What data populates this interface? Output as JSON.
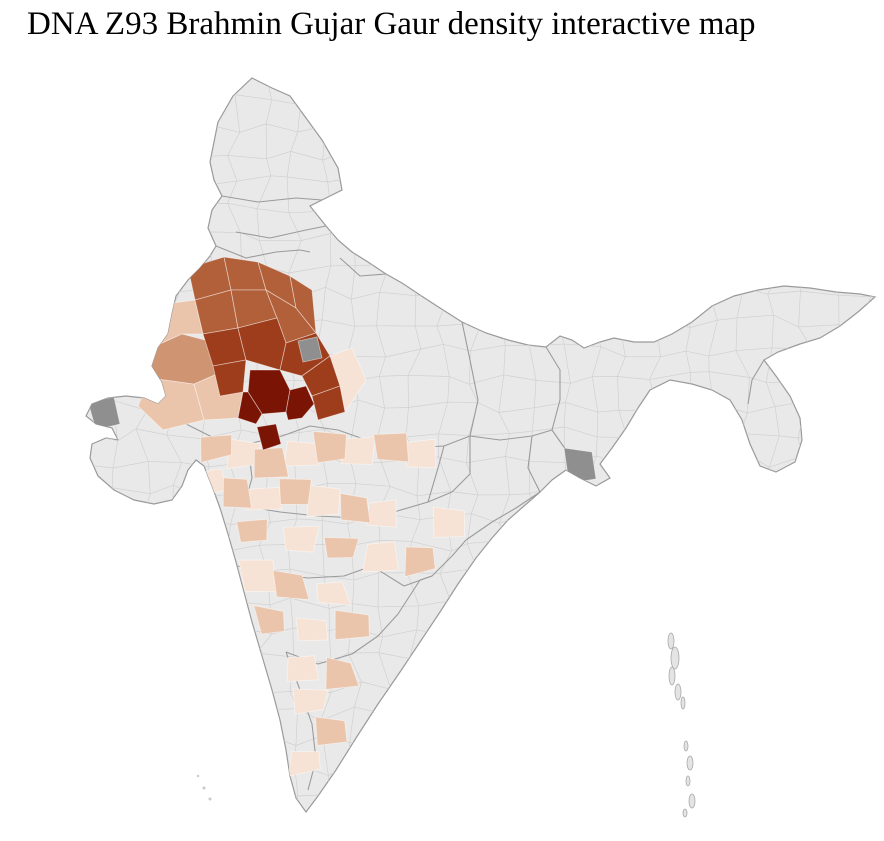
{
  "page": {
    "title": "DNA Z93 Brahmin Gujar Gaur density interactive map",
    "background": "#ffffff"
  },
  "map": {
    "region": "India",
    "kind": "district-choropleth",
    "base_fill": "#e9e9e9",
    "coast_stroke": "#9a9a9a",
    "state_stroke": "#9b9b9b",
    "district_mesh_stroke": "#cfcfcf",
    "density_scale": {
      "very-high": "#7a1404",
      "high": "#9d3d1b",
      "medium": "#b2603a",
      "medium-low": "#cf9472",
      "low": "#eac5ab",
      "very-low": "#f6e3d6",
      "no-data-dark": "#8f8f8f",
      "none": "#e9e9e9"
    },
    "districts": [
      {
        "id": "nw01",
        "level": "medium"
      },
      {
        "id": "nw02",
        "level": "medium"
      },
      {
        "id": "nw03",
        "level": "medium"
      },
      {
        "id": "nw04",
        "level": "medium"
      },
      {
        "id": "nw05",
        "level": "medium"
      },
      {
        "id": "nw06",
        "level": "medium"
      },
      {
        "id": "nw07",
        "level": "medium"
      },
      {
        "id": "nwh1",
        "level": "high"
      },
      {
        "id": "nwh2",
        "level": "high"
      },
      {
        "id": "nwh3",
        "level": "high"
      },
      {
        "id": "nwh4",
        "level": "high"
      },
      {
        "id": "nwh5",
        "level": "high"
      },
      {
        "id": "nwh6",
        "level": "high"
      },
      {
        "id": "nwd1",
        "level": "very-high"
      },
      {
        "id": "nwd2",
        "level": "very-high"
      },
      {
        "id": "nwd3",
        "level": "very-high"
      },
      {
        "id": "nwd4",
        "level": "very-high"
      },
      {
        "id": "nwg1",
        "level": "no-data-dark"
      },
      {
        "id": "gkutch",
        "level": "no-data-dark"
      },
      {
        "id": "geast",
        "level": "no-data-dark"
      },
      {
        "id": "nwml1",
        "level": "medium-low"
      },
      {
        "id": "nwl1",
        "level": "low"
      },
      {
        "id": "nwl2",
        "level": "low"
      },
      {
        "id": "nwl3",
        "level": "low"
      },
      {
        "id": "nwl4",
        "level": "very-low"
      },
      {
        "id": "s01",
        "level": "low"
      },
      {
        "id": "s02",
        "level": "very-low"
      },
      {
        "id": "s03",
        "level": "low"
      },
      {
        "id": "s04",
        "level": "very-low"
      },
      {
        "id": "s05",
        "level": "low"
      },
      {
        "id": "s06",
        "level": "very-low"
      },
      {
        "id": "s07",
        "level": "low"
      },
      {
        "id": "s08",
        "level": "very-low"
      },
      {
        "id": "s09",
        "level": "very-low"
      },
      {
        "id": "s10",
        "level": "low"
      },
      {
        "id": "s11",
        "level": "very-low"
      },
      {
        "id": "s12",
        "level": "low"
      },
      {
        "id": "s13",
        "level": "very-low"
      },
      {
        "id": "s14",
        "level": "low"
      },
      {
        "id": "s15",
        "level": "very-low"
      },
      {
        "id": "s16",
        "level": "low"
      },
      {
        "id": "s17",
        "level": "very-low"
      },
      {
        "id": "s18",
        "level": "low"
      },
      {
        "id": "s19",
        "level": "very-low"
      },
      {
        "id": "s20",
        "level": "very-low"
      },
      {
        "id": "s21",
        "level": "low"
      },
      {
        "id": "s22",
        "level": "very-low"
      },
      {
        "id": "s23",
        "level": "low"
      },
      {
        "id": "s24",
        "level": "very-low"
      },
      {
        "id": "s25",
        "level": "low"
      },
      {
        "id": "s26",
        "level": "very-low"
      },
      {
        "id": "s27",
        "level": "low"
      },
      {
        "id": "s28",
        "level": "very-low"
      },
      {
        "id": "s29",
        "level": "low"
      },
      {
        "id": "s30",
        "level": "very-low"
      },
      {
        "id": "s31",
        "level": "low"
      },
      {
        "id": "s32",
        "level": "very-low"
      }
    ]
  }
}
